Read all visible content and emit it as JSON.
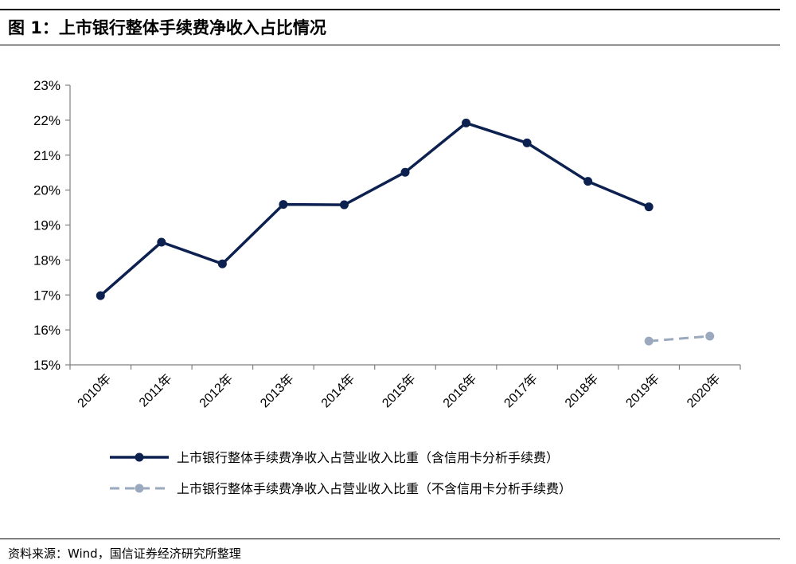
{
  "figure": {
    "title": "图 1：上市银行整体手续费净收入占比情况",
    "source": "资料来源：Wind，国信证券经济研究所整理"
  },
  "chart_data": {
    "type": "line",
    "categories": [
      "2010年",
      "2011年",
      "2012年",
      "2013年",
      "2014年",
      "2015年",
      "2016年",
      "2017年",
      "2018年",
      "2019年",
      "2020年"
    ],
    "y_tick_labels": [
      "15%",
      "16%",
      "17%",
      "18%",
      "19%",
      "20%",
      "21%",
      "22%",
      "23%"
    ],
    "ylim": [
      15,
      23
    ],
    "y_unit": "%",
    "grid": false,
    "legend_position": "bottom",
    "series": [
      {
        "name": "上市银行整体手续费净收入占营业收入比重（含信用卡分析手续费）",
        "values": [
          16.98,
          18.51,
          17.89,
          19.59,
          19.58,
          20.51,
          21.92,
          21.35,
          20.25,
          19.52,
          null
        ],
        "color": "#0d2150",
        "style": "solid"
      },
      {
        "name": "上市银行整体手续费净收入占营业收入比重（不含信用卡分析手续费）",
        "values": [
          null,
          null,
          null,
          null,
          null,
          null,
          null,
          null,
          null,
          15.68,
          15.82
        ],
        "color": "#9aa9bd",
        "style": "dashed"
      }
    ]
  }
}
